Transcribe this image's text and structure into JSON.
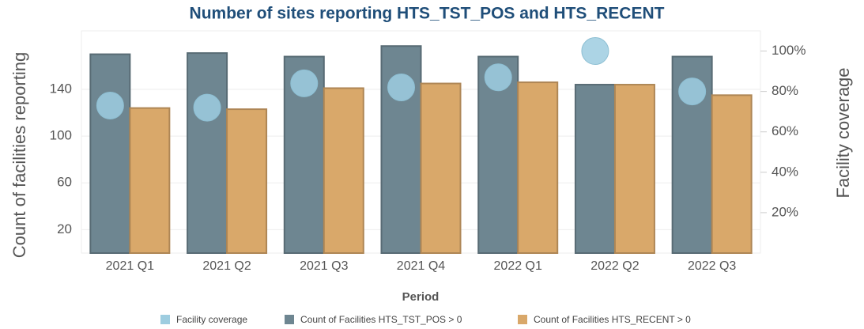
{
  "chart_data": {
    "type": "bar",
    "title": "Number of sites reporting HTS_TST_POS and HTS_RECENT",
    "x_label": "Period",
    "y_label": "Count of facilities reporting",
    "y2_label": "Facility coverage",
    "categories": [
      "2021 Q1",
      "2021 Q2",
      "2021 Q3",
      "2021 Q4",
      "2022 Q1",
      "2022 Q2",
      "2022 Q3"
    ],
    "series": [
      {
        "name": "Facility coverage",
        "type": "scatter",
        "axis": "y2",
        "color": "#9ecde0",
        "values": [
          73,
          72,
          84,
          82,
          87,
          100,
          80
        ]
      },
      {
        "name": "Count of Facilities HTS_TST_POS > 0",
        "type": "bar",
        "color": "#6e8691",
        "values": [
          170,
          171,
          168,
          177,
          168,
          144,
          168
        ]
      },
      {
        "name": "Count of Facilities HTS_RECENT > 0",
        "type": "bar",
        "color": "#d9a86a",
        "values": [
          124,
          123,
          141,
          145,
          146,
          144,
          135
        ]
      }
    ],
    "ylim": [
      0,
      190
    ],
    "yticks": [
      20,
      60,
      100,
      140
    ],
    "y2lim": [
      0,
      110
    ],
    "y2ticks": [
      {
        "value": 20,
        "label": "20%"
      },
      {
        "value": 40,
        "label": "40%"
      },
      {
        "value": 60,
        "label": "60%"
      },
      {
        "value": 80,
        "label": "80%"
      },
      {
        "value": 100,
        "label": "100%"
      }
    ],
    "grid": true,
    "legend": "bottom"
  }
}
